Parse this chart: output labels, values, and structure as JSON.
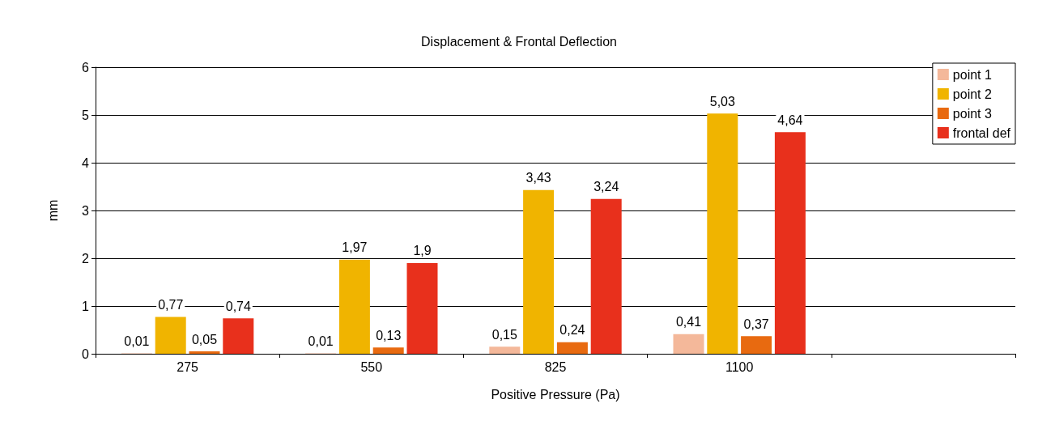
{
  "chart_data": {
    "type": "bar",
    "title": "Displacement & Frontal Deflection",
    "xlabel": "Positive Pressure (Pa)",
    "ylabel": "mm",
    "categories": [
      "275",
      "550",
      "825",
      "1100",
      null
    ],
    "series": [
      {
        "name": "point 1",
        "color": "#f4b89a",
        "values": [
          0.01,
          0.01,
          0.15,
          0.41,
          null
        ],
        "value_labels": [
          "0,01",
          "0,01",
          "0,15",
          "0,41",
          null
        ]
      },
      {
        "name": "point 2",
        "color": "#f0b400",
        "values": [
          0.77,
          1.97,
          3.43,
          5.03,
          null
        ],
        "value_labels": [
          "0,77",
          "1,97",
          "3,43",
          "5,03",
          null
        ]
      },
      {
        "name": "point 3",
        "color": "#e86a10",
        "values": [
          0.05,
          0.13,
          0.24,
          0.37,
          null
        ],
        "value_labels": [
          "0,05",
          "0,13",
          "0,24",
          "0,37",
          null
        ]
      },
      {
        "name": "frontal def",
        "color": "#e8301c",
        "values": [
          0.74,
          1.9,
          3.24,
          4.64,
          null
        ],
        "value_labels": [
          "0,74",
          "1,9",
          "3,24",
          "4,64",
          null
        ]
      }
    ],
    "ylim": [
      0,
      6
    ],
    "yticks": [
      0,
      1,
      2,
      3,
      4,
      5,
      6
    ],
    "grid": "y",
    "legend": "top right"
  }
}
